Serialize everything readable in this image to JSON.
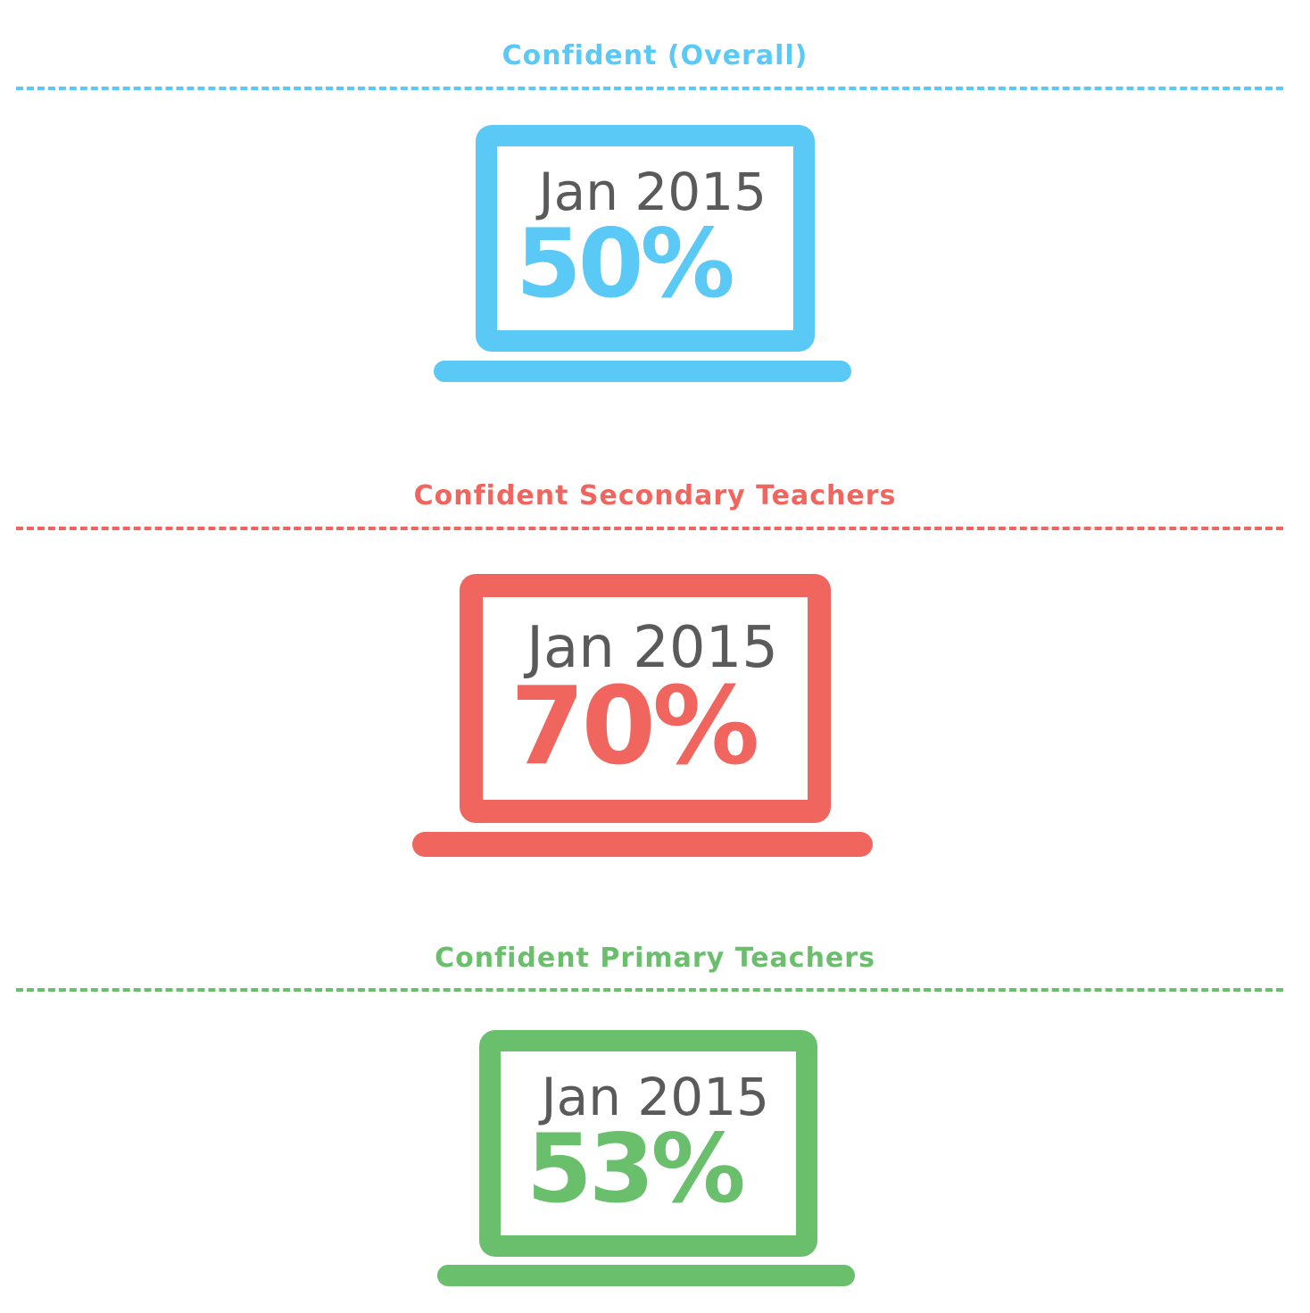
{
  "sections": [
    {
      "title": "Confident (Overall)",
      "date": "Jan 2015",
      "value": "50%",
      "color": "#5bc9f5"
    },
    {
      "title": "Confident Secondary Teachers",
      "date": "Jan 2015",
      "value": "70%",
      "color": "#f0665e"
    },
    {
      "title": "Confident Primary Teachers",
      "date": "Jan 2015",
      "value": "53%",
      "color": "#6abf6d"
    }
  ],
  "icons": {
    "laptop": "laptop-icon"
  }
}
